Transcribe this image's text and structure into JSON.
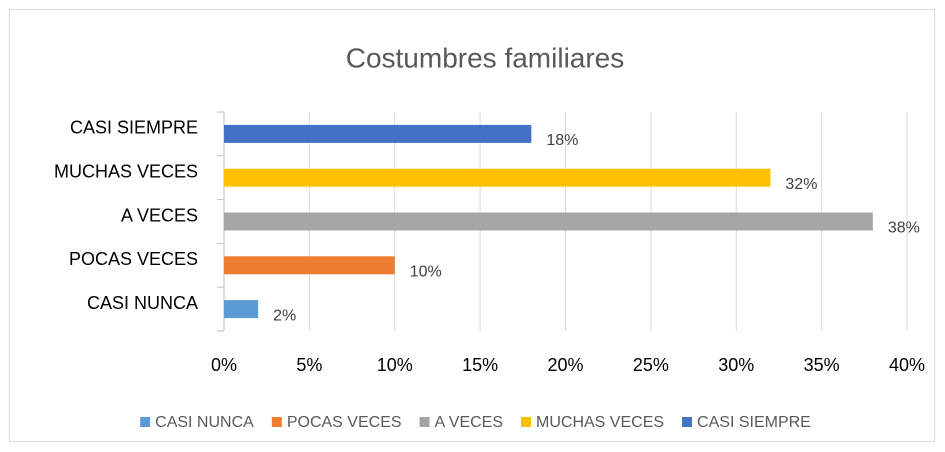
{
  "chart_data": {
    "type": "bar",
    "orientation": "horizontal",
    "title": "Costumbres familiares",
    "categories": [
      "CASI NUNCA",
      "POCAS VECES",
      "A VECES",
      "MUCHAS VECES",
      "CASI SIEMPRE"
    ],
    "values": [
      2,
      10,
      38,
      32,
      18
    ],
    "value_labels": [
      "2%",
      "10%",
      "38%",
      "32%",
      "18%"
    ],
    "colors": [
      "#5b9bd5",
      "#ed7d31",
      "#a5a5a5",
      "#ffc000",
      "#4472c4"
    ],
    "xlim": [
      0,
      40
    ],
    "xticks": [
      {
        "value": 0,
        "label": "0%"
      },
      {
        "value": 5,
        "label": "5%"
      },
      {
        "value": 10,
        "label": "10%"
      },
      {
        "value": 15,
        "label": "15%"
      },
      {
        "value": 20,
        "label": "20%"
      },
      {
        "value": 25,
        "label": "25%"
      },
      {
        "value": 30,
        "label": "30%"
      },
      {
        "value": 35,
        "label": "35%"
      },
      {
        "value": 40,
        "label": "40%"
      }
    ],
    "grid": true,
    "legend": "bottom"
  }
}
